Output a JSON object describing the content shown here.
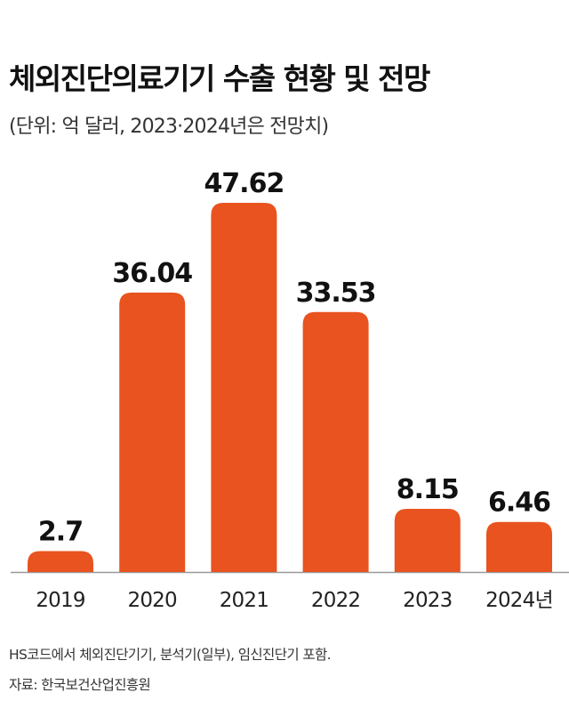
{
  "title": "체외진단의료기기 수출 현황 및 전망",
  "subtitle": "(단위: 억 달러, 2023·2024년은 전망치)",
  "footnote": "HS코드에서 체외진단기기, 분석기(일부), 임신진단기 포함.",
  "source": "자료: 한국보건산업진흥원",
  "colors": {
    "bar": "#e8531f",
    "axis": "#999999",
    "text": "#111111"
  },
  "chart_data": {
    "type": "bar",
    "title": "체외진단의료기기 수출 현황 및 전망",
    "categories": [
      "2019",
      "2020",
      "2021",
      "2022",
      "2023",
      "2024년"
    ],
    "values": [
      2.7,
      36.04,
      47.62,
      33.53,
      8.15,
      6.46
    ],
    "value_labels": [
      "2.7",
      "36.04",
      "47.62",
      "33.53",
      "8.15",
      "6.46"
    ],
    "unit": "억 달러",
    "ylim": [
      0,
      47.62
    ],
    "grid": false,
    "legend": "none"
  }
}
